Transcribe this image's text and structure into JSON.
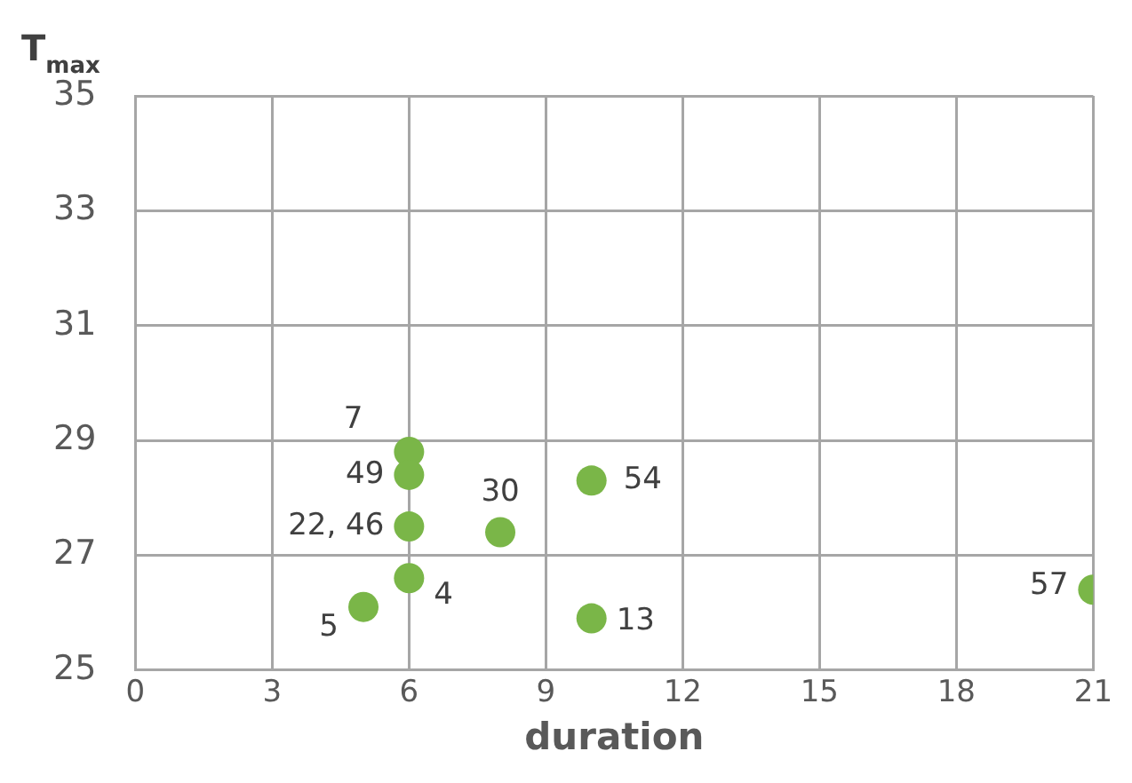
{
  "chart_data": {
    "type": "scatter",
    "xlabel": "duration",
    "ylabel": "T$_{max}$",
    "x": [
      6,
      6,
      6,
      6,
      5,
      8,
      10,
      10,
      21
    ],
    "series": [
      {
        "color": "#7ab648",
        "values": [
          28.8,
          28.4,
          27.5,
          26.6,
          26.1,
          27.4,
          28.3,
          25.9,
          26.4
        ]
      }
    ],
    "annotations": [
      {
        "text": "7",
        "x": 6,
        "y": 28.8
      },
      {
        "text": "49",
        "x": 6,
        "y": 28.4
      },
      {
        "text": "22, 46",
        "x": 6,
        "y": 27.5
      },
      {
        "text": "4",
        "x": 6,
        "y": 26.6
      },
      {
        "text": "5",
        "x": 5,
        "y": 26.1
      },
      {
        "text": "30",
        "x": 8,
        "y": 27.4
      },
      {
        "text": "54",
        "x": 10,
        "y": 28.3
      },
      {
        "text": "13",
        "x": 10,
        "y": 25.9
      },
      {
        "text": "57",
        "x": 21,
        "y": 26.4
      }
    ],
    "xlim": [
      0,
      21
    ],
    "xticks": [
      0,
      3,
      6,
      9,
      12,
      15,
      18,
      21
    ],
    "ylim": [
      25,
      35
    ],
    "yticks": [
      25,
      27,
      29,
      31,
      33,
      35
    ],
    "grid": true,
    "legend": false,
    "marker": "circle"
  }
}
